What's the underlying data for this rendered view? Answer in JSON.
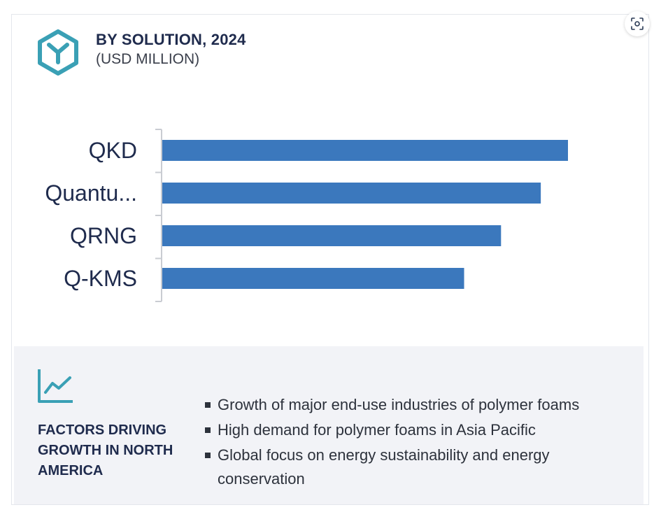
{
  "header": {
    "title": "BY SOLUTION, 2024",
    "subtitle": "(USD MILLION)",
    "logo_icon": "hexagon-y-logo-icon",
    "expand_icon": "screenshot-scan-icon"
  },
  "chart_data": {
    "type": "bar",
    "orientation": "horizontal",
    "title": "BY SOLUTION, 2024",
    "subtitle": "(USD MILLION)",
    "categories": [
      "QKD",
      "Quantu...",
      "QRNG",
      "Q-KMS"
    ],
    "values": [
      100,
      93.3,
      83.5,
      74.4
    ],
    "xlim": [
      0,
      100
    ],
    "grid": false,
    "bar_color": "#3b78bd",
    "axis_color": "#c9ccd2"
  },
  "factors": {
    "title": "FACTORS DRIVING GROWTH IN NORTH AMERICA",
    "icon": "line-chart-icon",
    "items": [
      "Growth of major end-use industries of polymer foams",
      "High demand for polymer foams in Asia Pacific",
      "Global focus on energy sustainability and energy conservation"
    ]
  },
  "colors": {
    "accent": "#3aa0b5",
    "title_navy": "#1f2b4d",
    "panel_bg": "#f2f3f7"
  }
}
